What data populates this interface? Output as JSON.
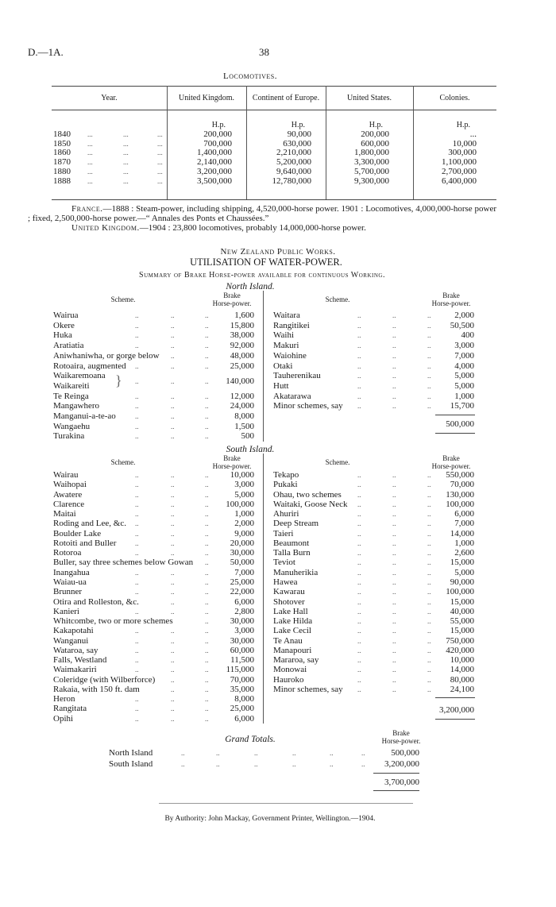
{
  "header": {
    "code": "D.—1A.",
    "page_number": "38"
  },
  "locomotives": {
    "title": "Locomotives.",
    "columns": [
      "Year.",
      "United Kingdom.",
      "Continent of Europe.",
      "United States.",
      "Colonies."
    ],
    "unit": "H.p.",
    "rows": [
      {
        "year": "1840",
        "values": [
          "200,000",
          "90,000",
          "200,000",
          "..."
        ]
      },
      {
        "year": "1850",
        "values": [
          "700,000",
          "630,000",
          "600,000",
          "10,000"
        ]
      },
      {
        "year": "1860",
        "values": [
          "1,400,000",
          "2,210,000",
          "1,800,000",
          "300,000"
        ]
      },
      {
        "year": "1870",
        "values": [
          "2,140,000",
          "5,200,000",
          "3,300,000",
          "1,100,000"
        ]
      },
      {
        "year": "1880",
        "values": [
          "3,200,000",
          "9,640,000",
          "5,700,000",
          "2,700,000"
        ]
      },
      {
        "year": "1888",
        "values": [
          "3,500,000",
          "12,780,000",
          "9,300,000",
          "6,400,000"
        ]
      }
    ]
  },
  "notes": [
    {
      "lead": "France.",
      "text": "—1888 : Steam-power, including shipping, 4,520,000-horse power. 1901 : Locomotives, 4,000,000-horse power ; fixed, 2,500,000-horse power.—“ Annales des Ponts et Chaussées.”"
    },
    {
      "lead": "United Kingdom.",
      "text": "—1904 : 23,800 locomotives, probably 14,000,000-horse power."
    }
  ],
  "water_power": {
    "org": "New Zealand Public Works.",
    "title": "UTILISATION OF WATER-POWER.",
    "subtitle": "Summary of Brake Horse-power available for continuous Working.",
    "scheme_header": "Scheme.",
    "hp_header": [
      "Brake",
      "Horse-power."
    ],
    "north": {
      "label": "North Island.",
      "left": [
        {
          "name": "Wairua",
          "value": "1,600"
        },
        {
          "name": "Okere",
          "value": "15,800"
        },
        {
          "name": "Huka",
          "value": "38,000"
        },
        {
          "name": "Aratiatia",
          "value": "92,000"
        },
        {
          "name": "Aniwhaniwha, or gorge below",
          "value": "48,000"
        },
        {
          "name": "Rotoaira, augmented",
          "value": "25,000"
        },
        {
          "name": "Waikaremoana",
          "name2": "Waikareiti",
          "value": "140,000"
        },
        {
          "name": "Te Reinga",
          "value": "12,000"
        },
        {
          "name": "Mangawhero",
          "value": "24,000"
        },
        {
          "name": "Manganui-a-te-ao",
          "value": "8,000"
        },
        {
          "name": "Wangaehu",
          "value": "1,500"
        },
        {
          "name": "Turakina",
          "value": "500"
        }
      ],
      "right": [
        {
          "name": "Waitara",
          "value": "2,000"
        },
        {
          "name": "Rangitikei",
          "value": "50,500"
        },
        {
          "name": "Waihi",
          "value": "400"
        },
        {
          "name": "Makuri",
          "value": "3,000"
        },
        {
          "name": "Waiohine",
          "value": "7,000"
        },
        {
          "name": "Otaki",
          "value": "4,000"
        },
        {
          "name": "Tauherenikau",
          "value": "5,000"
        },
        {
          "name": "Hutt",
          "value": "5,000"
        },
        {
          "name": "Akatarawa",
          "value": "1,000"
        },
        {
          "name": "Minor schemes, say",
          "value": "15,700"
        }
      ],
      "total": "500,000"
    },
    "south": {
      "label": "South Island.",
      "left": [
        {
          "name": "Wairau",
          "value": "10,000"
        },
        {
          "name": "Waihopai",
          "value": "3,000"
        },
        {
          "name": "Awatere",
          "value": "5,000"
        },
        {
          "name": "Clarence",
          "value": "100,000"
        },
        {
          "name": "Maitai",
          "value": "1,000"
        },
        {
          "name": "Roding and Lee, &c.",
          "value": "2,000"
        },
        {
          "name": "Boulder Lake",
          "value": "9,000"
        },
        {
          "name": "Rotoiti and Buller",
          "value": "20,000"
        },
        {
          "name": "Rotoroa",
          "value": "30,000"
        },
        {
          "name": "Buller, say three schemes below Gowan",
          "value": "50,000"
        },
        {
          "name": "Inangahua",
          "value": "7,000"
        },
        {
          "name": "Waiau-ua",
          "value": "25,000"
        },
        {
          "name": "Brunner",
          "value": "22,000"
        },
        {
          "name": "Otira and Rolleston, &c.",
          "value": "6,000"
        },
        {
          "name": "Kanieri",
          "value": "2,800"
        },
        {
          "name": "Whitcombe, two or more schemes",
          "value": "30,000"
        },
        {
          "name": "Kakapotahi",
          "value": "3,000"
        },
        {
          "name": "Wanganui",
          "value": "30,000"
        },
        {
          "name": "Wataroa, say",
          "value": "60,000"
        },
        {
          "name": "Falls, Westland",
          "value": "11,500"
        },
        {
          "name": "Waimakariri",
          "value": "115,000"
        },
        {
          "name": "Coleridge (with Wilberforce)",
          "value": "70,000"
        },
        {
          "name": "Rakaia, with 150 ft. dam",
          "value": "35,000"
        },
        {
          "name": "Heron",
          "value": "8,000"
        },
        {
          "name": "Rangitata",
          "value": "25,000"
        },
        {
          "name": "Opihi",
          "value": "6,000"
        }
      ],
      "right": [
        {
          "name": "Tekapo",
          "value": "550,000"
        },
        {
          "name": "Pukaki",
          "value": "70,000"
        },
        {
          "name": "Ohau, two schemes",
          "value": "130,000"
        },
        {
          "name": "Waitaki, Goose Neck",
          "value": "100,000"
        },
        {
          "name": "Ahuriri",
          "value": "6,000"
        },
        {
          "name": "Deep Stream",
          "value": "7,000"
        },
        {
          "name": "Taieri",
          "value": "14,000"
        },
        {
          "name": "Beaumont",
          "value": "1,000"
        },
        {
          "name": "Talla Burn",
          "value": "2,600"
        },
        {
          "name": "Teviot",
          "value": "15,000"
        },
        {
          "name": "Manuherikia",
          "value": "5,000"
        },
        {
          "name": "Hawea",
          "value": "90,000"
        },
        {
          "name": "Kawarau",
          "value": "100,000"
        },
        {
          "name": "Shotover",
          "value": "15,000"
        },
        {
          "name": "Lake Hall",
          "value": "40,000"
        },
        {
          "name": "Lake Hilda",
          "value": "55,000"
        },
        {
          "name": "Lake Cecil",
          "value": "15,000"
        },
        {
          "name": "Te Anau",
          "value": "750,000"
        },
        {
          "name": "Manapouri",
          "value": "420,000"
        },
        {
          "name": "Mararoa, say",
          "value": "10,000"
        },
        {
          "name": "Monowai",
          "value": "14,000"
        },
        {
          "name": "Hauroko",
          "value": "80,000"
        },
        {
          "name": "Minor schemes, say",
          "value": "24,100"
        }
      ],
      "total": "3,200,000"
    },
    "grand_totals": {
      "label": "Grand Totals.",
      "rows": [
        {
          "name": "North Island",
          "value": "500,000"
        },
        {
          "name": "South Island",
          "value": "3,200,000"
        }
      ],
      "total": "3,700,000"
    }
  },
  "footer": {
    "text": "By Authority: John Mackay, Government Printer, Wellington.—1904."
  }
}
